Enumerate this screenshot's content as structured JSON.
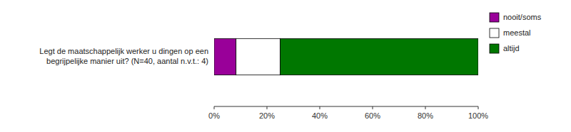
{
  "chart_data": {
    "type": "bar",
    "orientation": "horizontal",
    "stacked": true,
    "categories": [
      "Legt de maatschappelijk werker u dingen op een\nbegrijpelijke manier uit? (N=40, aantal n.v.t.: 4)"
    ],
    "series": [
      {
        "name": "nooit/soms",
        "color": "#990099",
        "values": [
          0.083
        ]
      },
      {
        "name": "meestal",
        "color": "#ffffff",
        "values": [
          0.167
        ]
      },
      {
        "name": "altijd",
        "color": "#007700",
        "values": [
          0.75
        ]
      }
    ],
    "xlim": [
      0,
      1
    ],
    "xticks": [
      {
        "value": 0,
        "label": "0%"
      },
      {
        "value": 0.2,
        "label": "20%"
      },
      {
        "value": 0.4,
        "label": "40%"
      },
      {
        "value": 0.6,
        "label": "60%"
      },
      {
        "value": 0.8,
        "label": "80%"
      },
      {
        "value": 1.0,
        "label": "100%"
      }
    ],
    "grid": false,
    "legend": "right"
  }
}
